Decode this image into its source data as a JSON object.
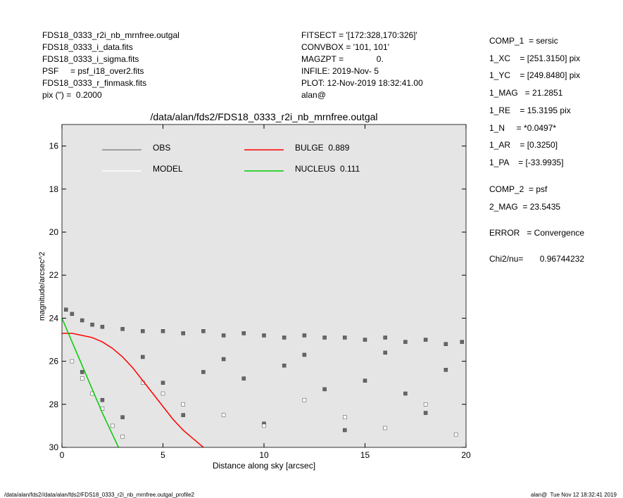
{
  "header_left": [
    "FDS18_0333_r2i_nb_mrnfree.outgal",
    "FDS18_0333_i_data.fits",
    "FDS18_0333_i_sigma.fits",
    "PSF     = psf_i18_over2.fits",
    "FDS18_0333_r_finmask.fits",
    "pix (\") =  0.2000"
  ],
  "header_mid": [
    "FITSECT = '[172:328,170:326]'",
    "CONVBOX = '101, 101'",
    "MAGZPT =              0.",
    "INFILE: 2019-Nov- 5",
    "PLOT: 12-Nov-2019 18:32:41.00",
    "alan@"
  ],
  "header_right": [
    "COMP_1  = sersic",
    "1_XC    = [251.3150] pix",
    "1_YC    = [249.8480] pix",
    "1_MAG   = 21.2851",
    "1_RE    = 15.3195 pix",
    "1_N     = *0.0497*",
    "1_AR    = [0.3250]",
    "1_PA    = [-33.9935]",
    "COMP_2  = psf",
    "2_MAG  = 23.5435",
    "ERROR   = Convergence",
    "Chi2/nu=       0.96744232"
  ],
  "footer_left": "/data/alan/fds2//data/alan/fds2/FDS18_0333_r2i_nb_mrnfree.outgal_profile2",
  "footer_right": "alan@  Tue Nov 12 18:32:41 2019",
  "chart_data": {
    "type": "scatter",
    "title": "/data/alan/fds2/FDS18_0333_r2i_nb_mrnfree.outgal",
    "xlabel": "Distance along sky [arcsec]",
    "ylabel": "magnitude/arcsec^2",
    "xlim": [
      0,
      20
    ],
    "ylim": [
      30,
      15
    ],
    "xticks": [
      0,
      5,
      10,
      15,
      20
    ],
    "yticks": [
      16,
      18,
      20,
      22,
      24,
      26,
      28,
      30
    ],
    "background": "#e5e5e5",
    "series": [
      {
        "name": "OBS",
        "kind": "points",
        "color": "#666666",
        "x": [
          0.2,
          0.5,
          1.0,
          1.5,
          2,
          3,
          4,
          5,
          6,
          7,
          8,
          9,
          10,
          11,
          12,
          13,
          14,
          15,
          16,
          17,
          18,
          19,
          19.8,
          1,
          2,
          3,
          5,
          7,
          9,
          11,
          13,
          15,
          17,
          19,
          4,
          8,
          12,
          16,
          6,
          10,
          14,
          18
        ],
        "values": [
          23.6,
          23.8,
          24.1,
          24.3,
          24.4,
          24.5,
          24.6,
          24.6,
          24.7,
          24.6,
          24.8,
          24.7,
          24.8,
          24.9,
          24.8,
          24.9,
          24.9,
          25.0,
          24.9,
          25.1,
          25.0,
          25.2,
          25.1,
          26.5,
          27.8,
          28.6,
          27.0,
          26.5,
          26.8,
          26.2,
          27.3,
          26.9,
          27.5,
          26.4,
          25.8,
          25.9,
          25.7,
          25.6,
          28.5,
          28.9,
          29.2,
          28.4
        ]
      },
      {
        "name": "MODEL",
        "kind": "points",
        "color": "#ffffff",
        "x": [
          0.5,
          1,
          1.5,
          2,
          2.5,
          3,
          4,
          5,
          6,
          8,
          10,
          12,
          14,
          16,
          18,
          19.5
        ],
        "values": [
          26,
          26.8,
          27.5,
          28.2,
          29,
          29.5,
          27,
          27.5,
          28,
          28.5,
          29,
          27.8,
          28.6,
          29.1,
          28,
          29.4
        ]
      },
      {
        "name": "BULGE  0.889",
        "kind": "line",
        "color": "#ff0000",
        "x": [
          0,
          0.5,
          1,
          1.5,
          2,
          2.5,
          3,
          3.5,
          4,
          4.5,
          5,
          5.5,
          6,
          6.5,
          7
        ],
        "values": [
          24.7,
          24.7,
          24.8,
          24.9,
          25.1,
          25.4,
          25.8,
          26.3,
          26.9,
          27.5,
          28.1,
          28.7,
          29.2,
          29.6,
          30
        ]
      },
      {
        "name": "NUCLEUS  0.111",
        "kind": "line",
        "color": "#00cc00",
        "x": [
          0,
          0.5,
          1,
          1.5,
          2,
          2.5,
          2.8
        ],
        "values": [
          24.0,
          25.1,
          26.2,
          27.3,
          28.4,
          29.4,
          30
        ]
      }
    ]
  }
}
